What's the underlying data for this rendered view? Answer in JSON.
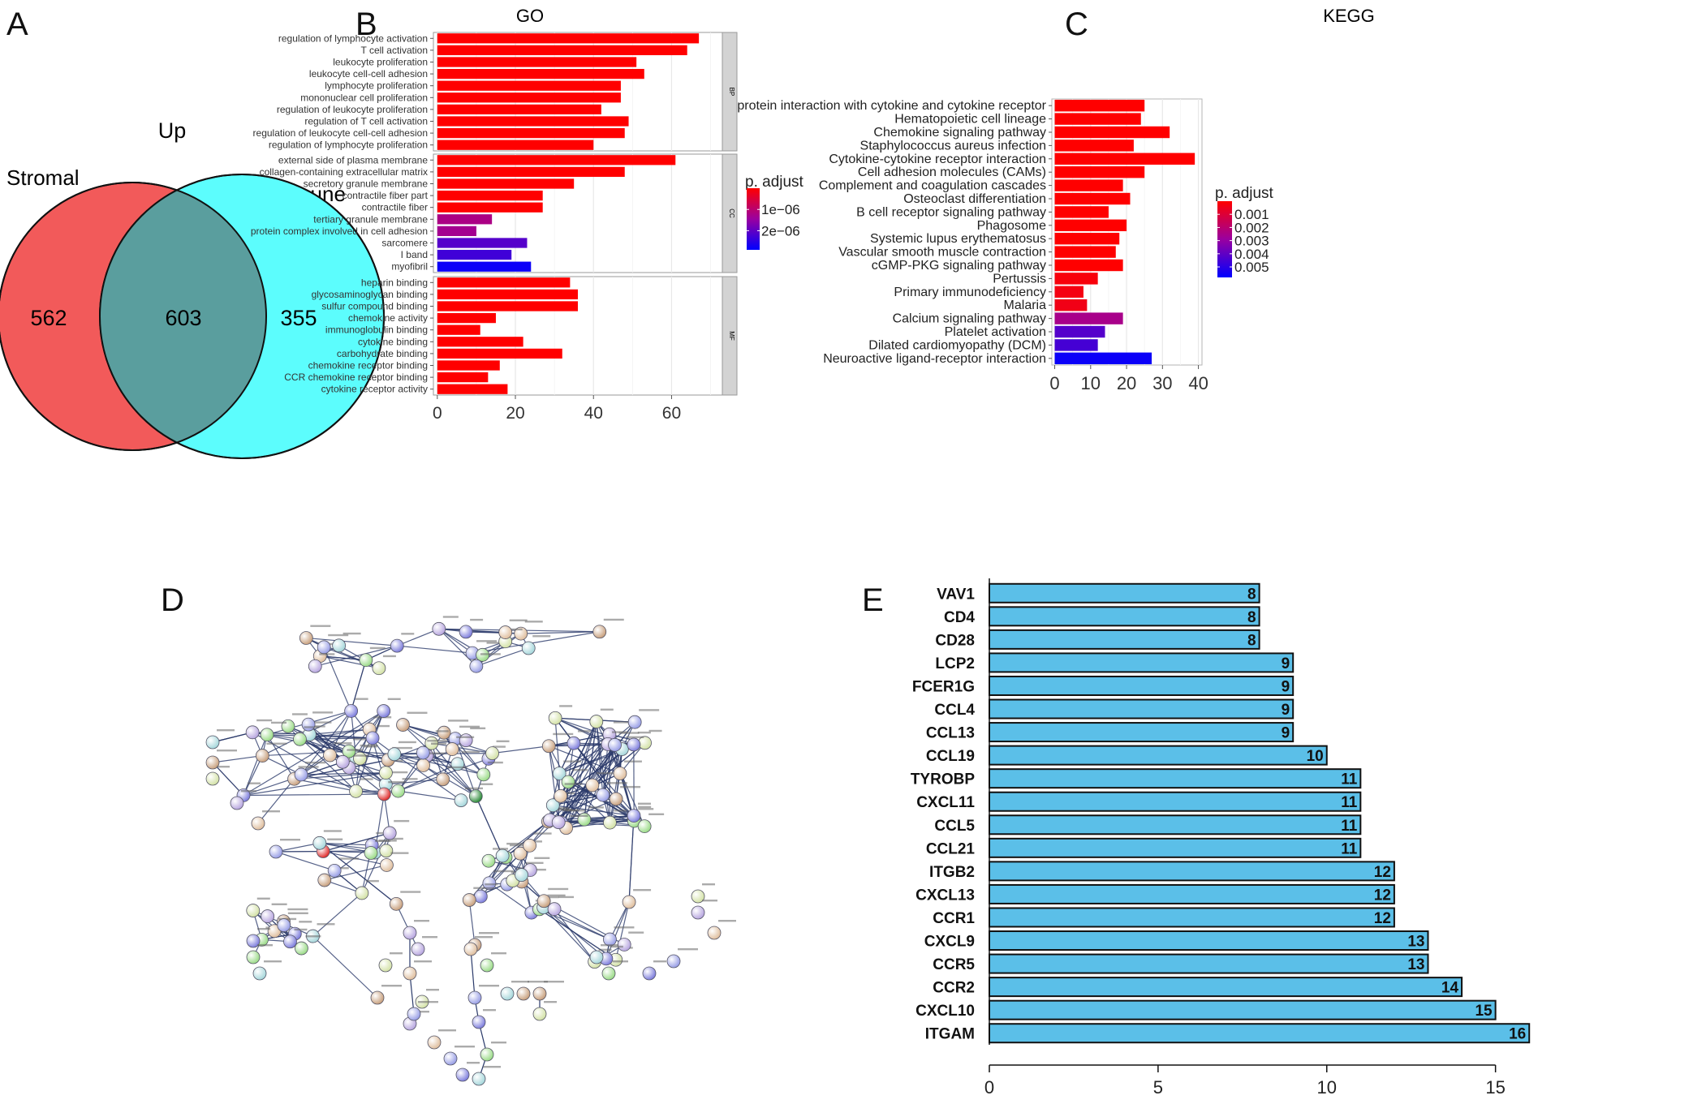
{
  "panels": {
    "a": "A",
    "b": "B",
    "c": "C",
    "d": "D",
    "e": "E"
  },
  "venn": {
    "title": "Up",
    "left_label": "Stromal",
    "right_label": "Immune",
    "left_only": "562",
    "overlap": "603",
    "right_only": "355",
    "colors": {
      "left": "#f25a5a",
      "right": "#5cfdfd",
      "overlap": "#5a9e9e"
    }
  },
  "chart_data": [
    {
      "id": "go",
      "type": "bar",
      "orientation": "horizontal",
      "title": "GO",
      "groups": [
        {
          "name": "BP",
          "categories": [
            "regulation of lymphocyte activation",
            "T cell activation",
            "leukocyte proliferation",
            "leukocyte cell-cell adhesion",
            "lymphocyte proliferation",
            "mononuclear cell proliferation",
            "regulation of leukocyte proliferation",
            "regulation of T cell activation",
            "regulation of leukocyte cell-cell adhesion",
            "regulation of lymphocyte proliferation"
          ],
          "values": [
            67,
            64,
            51,
            53,
            47,
            47,
            42,
            49,
            48,
            40
          ],
          "p_adjust": [
            0,
            0,
            0,
            0,
            0,
            0,
            0,
            0,
            0,
            0
          ]
        },
        {
          "name": "CC",
          "categories": [
            "external side of plasma membrane",
            "collagen-containing extracellular matrix",
            "secretory granule membrane",
            "contractile fiber part",
            "contractile fiber",
            "tertiary granule membrane",
            "protein complex involved in cell adhesion",
            "sarcomere",
            "I band",
            "myofibril"
          ],
          "values": [
            61,
            48,
            35,
            27,
            27,
            14,
            10,
            23,
            19,
            24
          ],
          "p_adjust": [
            0,
            0,
            0,
            0,
            0,
            1.2e-06,
            1.3e-06,
            2.1e-06,
            2.3e-06,
            2.8e-06
          ]
        },
        {
          "name": "MF",
          "categories": [
            "heparin binding",
            "glycosaminoglycan binding",
            "sulfur compound binding",
            "chemokine activity",
            "immunoglobulin binding",
            "cytokine binding",
            "carbohydrate binding",
            "chemokine receptor binding",
            "CCR chemokine receptor binding",
            "cytokine receptor activity"
          ],
          "values": [
            34,
            36,
            36,
            15,
            11,
            22,
            32,
            16,
            13,
            18
          ],
          "p_adjust": [
            0,
            0,
            0,
            0,
            0,
            0,
            0,
            0,
            0,
            0
          ]
        }
      ],
      "xlim": [
        -1,
        73
      ],
      "x_ticks": [
        0,
        20,
        40,
        60
      ],
      "legend": {
        "title": "p. adjust",
        "labels": [
          "1e−06",
          "2e−06"
        ],
        "range": [
          0,
          2.9e-06
        ]
      },
      "colors": {
        "low": "#ff0000",
        "high": "#0000ff"
      }
    },
    {
      "id": "kegg",
      "type": "bar",
      "orientation": "horizontal",
      "title": "KEGG",
      "categories": [
        "protein interaction with cytokine and cytokine receptor",
        "Hematopoietic cell lineage",
        "Chemokine signaling pathway",
        "Staphylococcus aureus infection",
        "Cytokine-cytokine receptor interaction",
        "Cell adhesion molecules (CAMs)",
        "Complement and coagulation cascades",
        "Osteoclast differentiation",
        "B cell receptor signaling pathway",
        "Phagosome",
        "Systemic lupus erythematosus",
        "Vascular smooth muscle contraction",
        "cGMP-PKG signaling pathway",
        "Pertussis",
        "Primary immunodeficiency",
        "Malaria",
        "Calcium signaling pathway",
        "Platelet activation",
        "Dilated cardiomyopathy (DCM)",
        "Neuroactive ligand-receptor interaction"
      ],
      "values": [
        25,
        24,
        32,
        22,
        39,
        25,
        19,
        21,
        15,
        20,
        18,
        17,
        19,
        12,
        8,
        9,
        19,
        14,
        12,
        27
      ],
      "p_adjust": [
        0,
        0,
        0,
        0,
        0,
        0,
        0,
        0,
        0,
        0,
        0,
        0,
        0,
        0.0002,
        0.0003,
        0.0004,
        0.0025,
        0.0042,
        0.0045,
        0.0056
      ],
      "xlim": [
        -0.8,
        41
      ],
      "x_ticks": [
        0,
        10,
        20,
        30,
        40
      ],
      "legend": {
        "title": "p. adjust",
        "labels": [
          "0.001",
          "0.002",
          "0.003",
          "0.004",
          "0.005"
        ],
        "values": [
          0.001,
          0.002,
          0.003,
          0.004,
          0.005
        ],
        "range": [
          0,
          0.0058
        ]
      },
      "colors": {
        "low": "#ff0000",
        "high": "#0000ff"
      }
    },
    {
      "id": "hub",
      "type": "bar",
      "orientation": "horizontal",
      "categories": [
        "VAV1",
        "CD4",
        "CD28",
        "LCP2",
        "FCER1G",
        "CCL4",
        "CCL13",
        "CCL19",
        "TYROBP",
        "CXCL11",
        "CCL5",
        "CCL21",
        "ITGB2",
        "CXCL13",
        "CCR1",
        "CXCL9",
        "CCR5",
        "CCR2",
        "CXCL10",
        "ITGAM"
      ],
      "values": [
        8,
        8,
        8,
        9,
        9,
        9,
        9,
        10,
        11,
        11,
        11,
        11,
        12,
        12,
        12,
        13,
        13,
        14,
        15,
        16
      ],
      "x_ticks": [
        0,
        5,
        10,
        15
      ],
      "xlim": [
        0,
        16.5
      ],
      "colors": {
        "bar": "#5bbfe8",
        "edge": "#111111"
      }
    }
  ],
  "network": {
    "node_colors": [
      "#8080dd",
      "#9ddc8a",
      "#a8d8dc",
      "#c9a280",
      "#d4e2a8",
      "#b9a8e0",
      "#e0c0a0",
      "#9aa0e6"
    ],
    "highlight_colors": [
      "#e03030",
      "#2e8b3a"
    ]
  }
}
